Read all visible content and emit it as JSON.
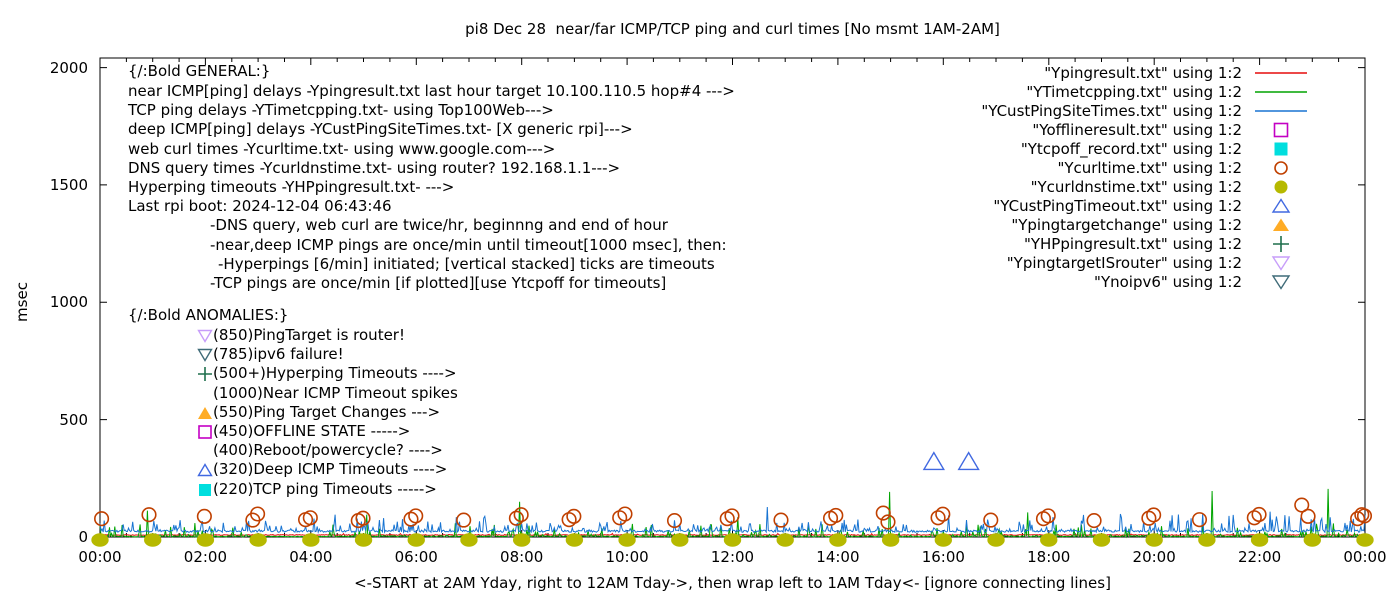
{
  "chart_data": {
    "type": "line",
    "title": "pi8 Dec 28  near/far ICMP/TCP ping and curl times [No msmt 1AM-2AM]",
    "ylabel": "msec",
    "xlabel": "<-START at 2AM Yday, right to 12AM Tday->, then wrap left to 1AM Tday<- [ignore connecting lines]",
    "ylim": [
      0,
      2000
    ],
    "xlim_hours": [
      0,
      24
    ],
    "grid": "off",
    "legend_position": "top-right-inside",
    "y_ticks": [
      "0",
      "500",
      "1000",
      "1500",
      "2000"
    ],
    "y_tick_values": [
      0,
      500,
      1000,
      1500,
      2000
    ],
    "x_ticks": [
      "00:00",
      "02:00",
      "04:00",
      "06:00",
      "08:00",
      "10:00",
      "12:00",
      "14:00",
      "16:00",
      "18:00",
      "20:00",
      "22:00",
      "00:00"
    ],
    "x_tick_hours": [
      0,
      2,
      4,
      6,
      8,
      10,
      12,
      14,
      16,
      18,
      20,
      22,
      24
    ],
    "noise_seed": 20241228,
    "series": [
      {
        "label": "\"Ypingresult.txt\" using 1:2",
        "color": "#e60c0c",
        "marker": "line",
        "style": "noisy-line",
        "baseline_msec": 8,
        "noise_amp_msec": 3,
        "spike_chance": 0.04,
        "spike_amp_msec": 7,
        "tall_spikes": []
      },
      {
        "label": "\"YTimetcpping.txt\" using 1:2",
        "color": "#00a400",
        "marker": "line",
        "style": "noisy-line",
        "baseline_msec": 2,
        "noise_amp_msec": 5,
        "spike_chance": 0.17,
        "spike_amp_msec": 58,
        "quiet_hours": [
          2.95,
          4.35
        ],
        "tall_spikes": [
          [
            0.9,
            112
          ],
          [
            5.05,
            95
          ],
          [
            7.95,
            150
          ],
          [
            12.1,
            85
          ],
          [
            14.97,
            192
          ],
          [
            17.6,
            105
          ],
          [
            21.1,
            196
          ],
          [
            23.3,
            205
          ]
        ]
      },
      {
        "label": "\"YCustPingSiteTimes.txt\" using 1:2",
        "color": "#1874d2",
        "marker": "line",
        "style": "noisy-line",
        "baseline_msec": 23,
        "noise_amp_msec": 9,
        "spike_chance": 0.25,
        "spike_amp_msec": 48,
        "busy_hours": [
          [
            4,
            7.5,
            1.3
          ],
          [
            17.3,
            24,
            1.6
          ]
        ],
        "tall_spikes": [
          [
            4.45,
            95
          ],
          [
            7.3,
            88
          ],
          [
            12.65,
            128
          ],
          [
            16.1,
            92
          ],
          [
            19.35,
            98
          ],
          [
            22.2,
            108
          ]
        ]
      },
      {
        "label": "\"Yofflineresult.txt\" using 1:2",
        "color": "#c400c4",
        "marker": "open-square",
        "style": "points",
        "points": []
      },
      {
        "label": "\"Ytcpoff_record.txt\" using 1:2",
        "color": "#00dede",
        "marker": "filled-square",
        "style": "points",
        "points": []
      },
      {
        "label": "\"Ycurltime.txt\" using 1:2",
        "color": "#c04000",
        "marker": "open-circle",
        "style": "points",
        "points": [
          [
            0.03,
            78
          ],
          [
            0.93,
            95
          ],
          [
            1.98,
            88
          ],
          [
            2.9,
            72
          ],
          [
            2.99,
            98
          ],
          [
            3.9,
            74
          ],
          [
            3.99,
            82
          ],
          [
            4.9,
            70
          ],
          [
            4.99,
            80
          ],
          [
            5.9,
            76
          ],
          [
            5.99,
            90
          ],
          [
            6.9,
            72
          ],
          [
            7.9,
            80
          ],
          [
            7.99,
            95
          ],
          [
            8.9,
            74
          ],
          [
            8.99,
            88
          ],
          [
            9.86,
            82
          ],
          [
            9.96,
            98
          ],
          [
            10.9,
            70
          ],
          [
            11.9,
            78
          ],
          [
            11.99,
            90
          ],
          [
            12.92,
            72
          ],
          [
            13.86,
            80
          ],
          [
            13.96,
            92
          ],
          [
            14.86,
            102
          ],
          [
            14.95,
            64
          ],
          [
            15.9,
            82
          ],
          [
            15.99,
            97
          ],
          [
            16.9,
            72
          ],
          [
            17.9,
            78
          ],
          [
            17.99,
            90
          ],
          [
            18.86,
            70
          ],
          [
            19.9,
            80
          ],
          [
            19.99,
            94
          ],
          [
            20.86,
            74
          ],
          [
            21.9,
            82
          ],
          [
            21.99,
            96
          ],
          [
            22.8,
            136
          ],
          [
            22.92,
            88
          ],
          [
            23.86,
            78
          ],
          [
            23.94,
            95
          ],
          [
            23.99,
            90
          ]
        ]
      },
      {
        "label": "\"Ycurldnstime.txt\" using 1:2",
        "color": "#b6b900",
        "marker": "filled-circle",
        "style": "points",
        "points": [
          [
            0,
            0
          ],
          [
            1,
            0
          ],
          [
            2,
            0
          ],
          [
            3,
            0
          ],
          [
            4,
            0
          ],
          [
            5,
            0
          ],
          [
            6,
            0
          ],
          [
            7,
            0
          ],
          [
            8,
            0
          ],
          [
            9,
            0
          ],
          [
            10,
            0
          ],
          [
            11,
            0
          ],
          [
            12,
            0
          ],
          [
            13,
            0
          ],
          [
            14,
            0
          ],
          [
            15,
            0
          ],
          [
            16,
            0
          ],
          [
            17,
            0
          ],
          [
            18,
            0
          ],
          [
            19,
            0
          ],
          [
            20,
            0
          ],
          [
            21,
            0
          ],
          [
            22,
            0
          ],
          [
            23,
            0
          ],
          [
            24,
            0
          ]
        ]
      },
      {
        "label": "\"YCustPingTimeout.txt\" using 1:2",
        "color": "#4169e1",
        "marker": "open-triangle-up",
        "style": "points",
        "points": [
          [
            15.82,
            320
          ],
          [
            16.48,
            320
          ]
        ]
      },
      {
        "label": "\"Ypingtargetchange\" using 1:2",
        "color": "#ffac26",
        "marker": "filled-triangle-up",
        "style": "points",
        "points": []
      },
      {
        "label": "\"YHPpingresult.txt\" using 1:2",
        "color": "#1e6f4c",
        "marker": "plus",
        "style": "points",
        "points": []
      },
      {
        "label": "\"YpingtargetISrouter\" using 1:2",
        "color": "#c79dfa",
        "marker": "open-triangle-down",
        "style": "points",
        "points": []
      },
      {
        "label": "\"Ynoipv6\" using 1:2",
        "color": "#3f6b78",
        "marker": "open-triangle-down",
        "style": "points",
        "points": []
      }
    ],
    "general": {
      "header": "{/:Bold GENERAL:}",
      "lines": [
        {
          "text": "near ICMP[ping] delays -Ypingresult.txt last hour target 10.100.110.5 hop#4 --->",
          "indent": 0
        },
        {
          "text": "TCP ping delays -YTimetcpping.txt- using Top100Web--->",
          "indent": 0
        },
        {
          "text": "deep ICMP[ping] delays -YCustPingSiteTimes.txt- [X generic rpi]--->",
          "indent": 0
        },
        {
          "text": "web curl times -Ycurltime.txt- using www.google.com--->",
          "indent": 0
        },
        {
          "text": "DNS query times -Ycurldnstime.txt- using router? 192.168.1.1--->",
          "indent": 0
        },
        {
          "text": "Hyperping timeouts -YHPpingresult.txt- --->",
          "indent": 0
        },
        {
          "text": "Last rpi boot: 2024-12-04 06:43:46",
          "indent": 0
        },
        {
          "text": "-DNS query, web curl are twice/hr, beginnng and end of hour",
          "indent": 1
        },
        {
          "text": "-near,deep ICMP pings are once/min until timeout[1000 msec], then:",
          "indent": 1
        },
        {
          "text": "-Hyperpings [6/min] initiated; [vertical stacked] ticks are timeouts",
          "indent": 2
        },
        {
          "text": "-TCP pings are once/min [if plotted][use Ytcpoff for timeouts]",
          "indent": 1
        }
      ]
    },
    "anomalies": {
      "header": "{/:Bold ANOMALIES:}",
      "rows": [
        {
          "marker": "open-triangle-down",
          "color": "#c79dfa",
          "text": "(850)PingTarget is router!"
        },
        {
          "marker": "open-triangle-down",
          "color": "#3f6b78",
          "text": "(785)ipv6 failure!"
        },
        {
          "marker": "plus",
          "color": "#1e6f4c",
          "text": "(500+)Hyperping Timeouts ---->"
        },
        {
          "marker": "none",
          "color": "",
          "text": "(1000)Near ICMP Timeout spikes"
        },
        {
          "marker": "filled-triangle-up",
          "color": "#ffac26",
          "text": "(550)Ping Target Changes --->"
        },
        {
          "marker": "open-square",
          "color": "#c400c4",
          "text": "(450)OFFLINE STATE ----->"
        },
        {
          "marker": "none",
          "color": "",
          "text": "(400)Reboot/powercycle? ---->"
        },
        {
          "marker": "open-triangle-up",
          "color": "#4169e1",
          "text": "(320)Deep ICMP Timeouts ---->"
        },
        {
          "marker": "filled-square",
          "color": "#00dede",
          "text": "(220)TCP ping Timeouts ----->"
        }
      ]
    }
  }
}
